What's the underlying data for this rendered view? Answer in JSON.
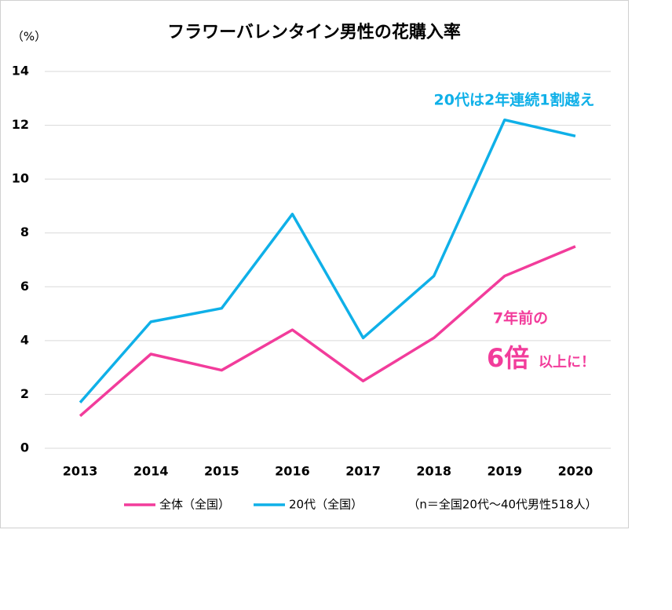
{
  "chart_data": {
    "type": "line",
    "title": "フラワーバレンタイン男性の花購入率",
    "y_unit": "（%）",
    "categories": [
      "2013",
      "2014",
      "2015",
      "2016",
      "2017",
      "2018",
      "2019",
      "2020"
    ],
    "series": [
      {
        "name": "全体（全国）",
        "color": "#f23c9b",
        "values": [
          1.2,
          3.5,
          2.9,
          4.4,
          2.5,
          4.1,
          6.4,
          7.5
        ]
      },
      {
        "name": "20代（全国）",
        "color": "#0fb0e8",
        "values": [
          1.7,
          4.7,
          5.2,
          8.7,
          4.1,
          6.4,
          12.2,
          11.6
        ]
      }
    ],
    "ylim": [
      0,
      14
    ],
    "yticks": [
      0,
      2,
      4,
      6,
      8,
      10,
      12,
      14
    ],
    "grid": true,
    "annotations": [
      "20代は2年連続1割越え",
      "7年前の",
      "6倍",
      "以上に！"
    ],
    "note": "（n＝全国20代〜40代男性518人）"
  }
}
